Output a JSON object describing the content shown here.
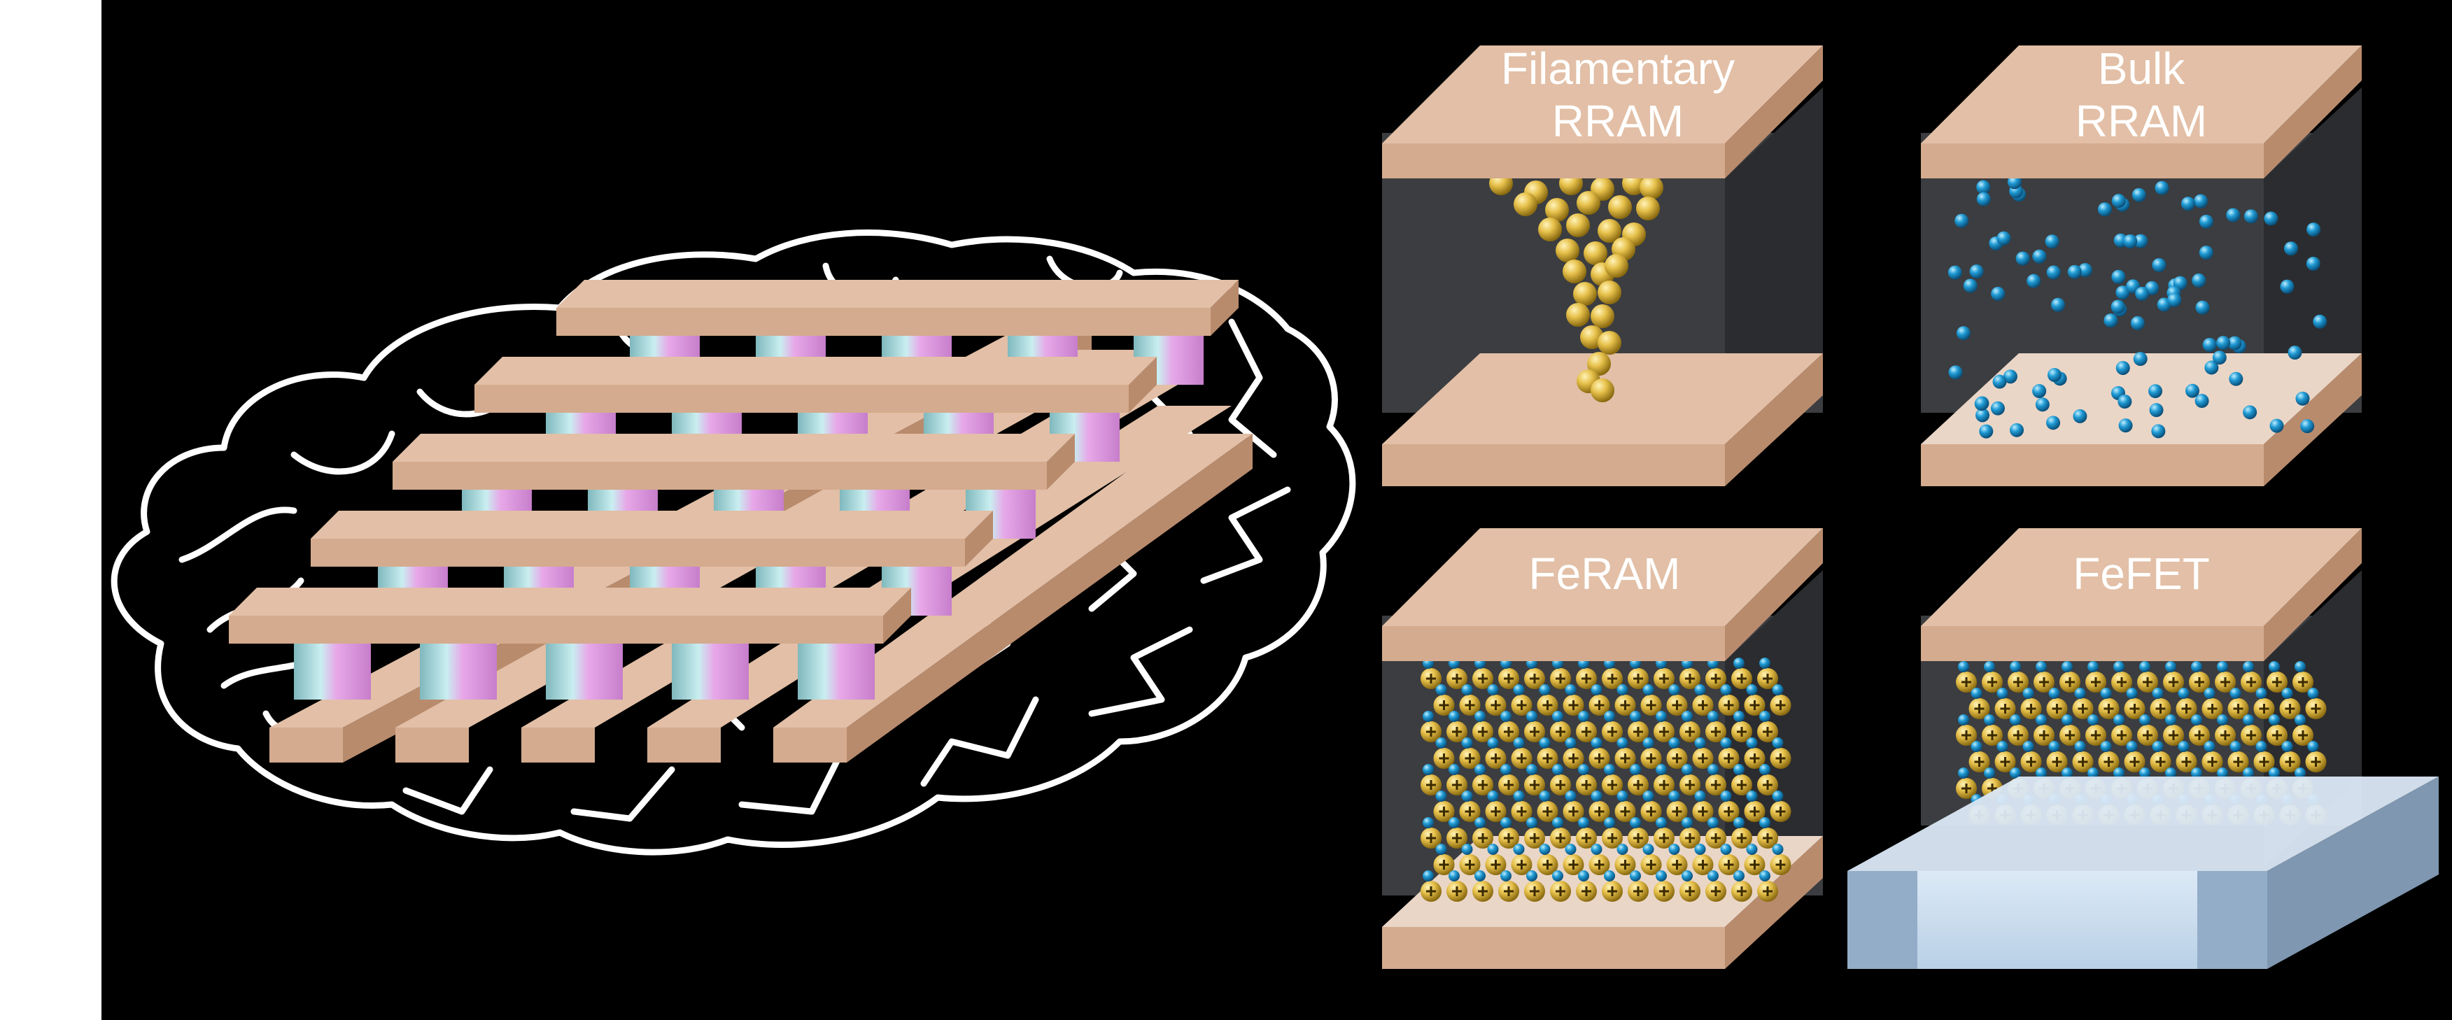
{
  "panels": {
    "filamentary": {
      "line1": "Filamentary",
      "line2": "RRAM"
    },
    "bulk": {
      "line1": "Bulk",
      "line2": "RRAM"
    },
    "feram": {
      "label": "FeRAM"
    },
    "fefet": {
      "label": "FeFET"
    }
  },
  "colors": {
    "background": "#000000",
    "margin": "#ffffff",
    "electrode_top": "#e2bfa6",
    "electrode_front": "#d4ab8e",
    "electrode_side": "#b98b6d",
    "oxide_dark": "#3b3d40",
    "gold_ion": "#e6c04a",
    "blue_ion": "#1f9ad4",
    "cell_pink": "#e7a8e8",
    "cell_teal": "#8fc7cc",
    "substrate": "#bcd3ea"
  }
}
